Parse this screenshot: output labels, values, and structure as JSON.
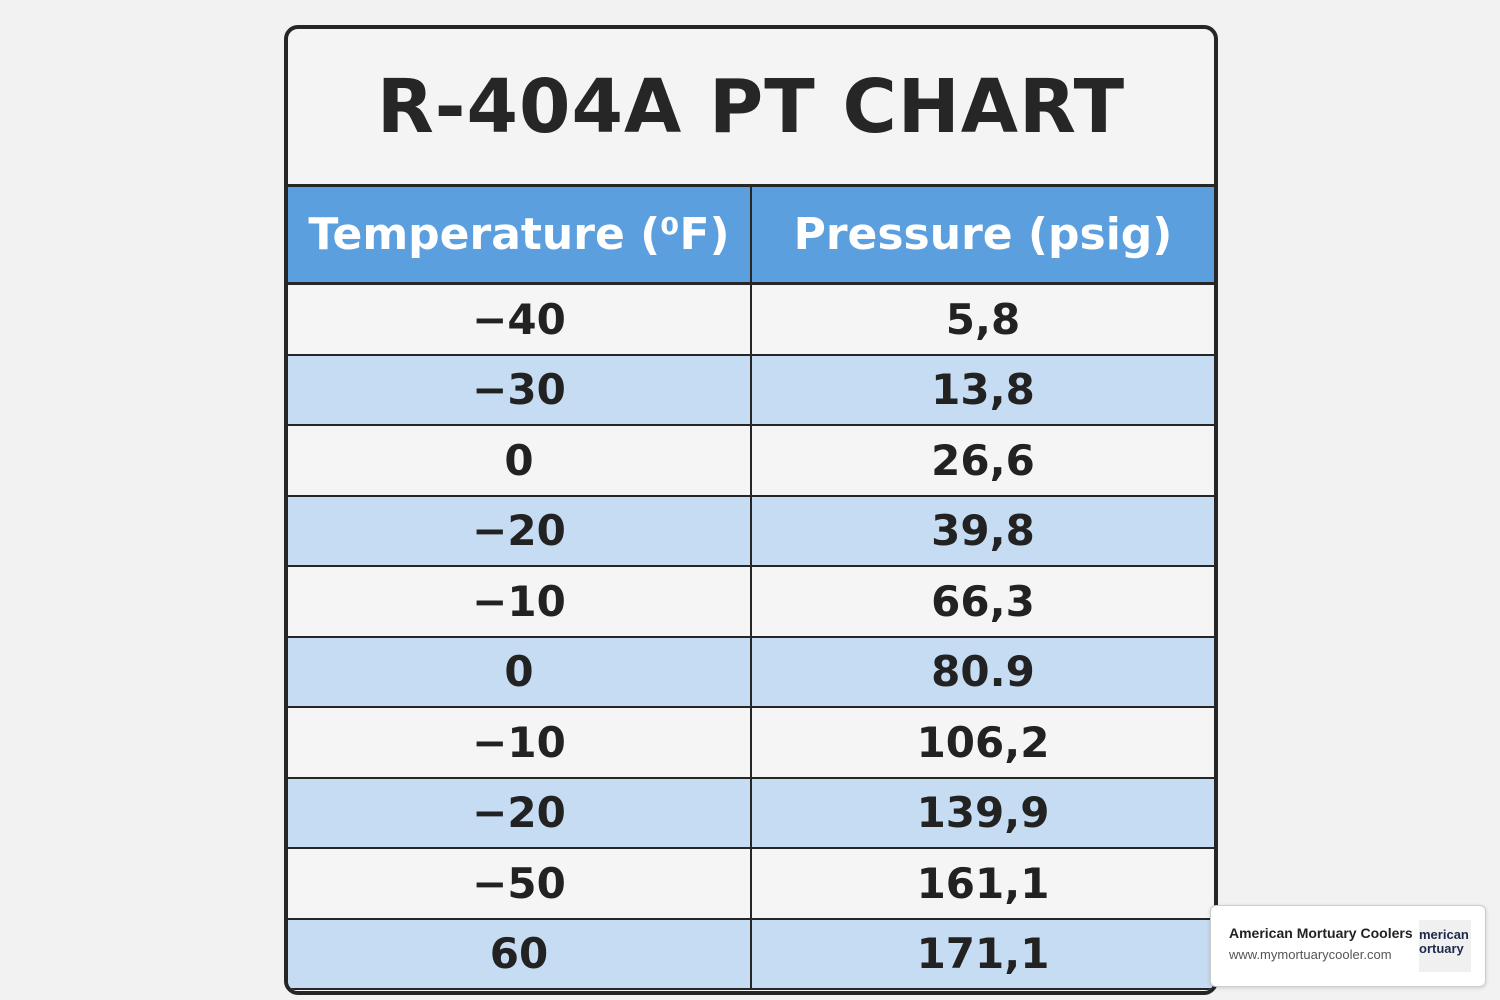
{
  "header": {
    "title": "R-404A PT CHART"
  },
  "table": {
    "columns": [
      "Temperature (⁰F)",
      "Pressure (psig)"
    ],
    "rows": [
      [
        "−40",
        "5,8"
      ],
      [
        "−30",
        "13,8"
      ],
      [
        "0",
        "26,6"
      ],
      [
        "−20",
        "39,8"
      ],
      [
        "−10",
        "66,3"
      ],
      [
        "0",
        "80.9"
      ],
      [
        "−10",
        "106,2"
      ],
      [
        "−20",
        "139,9"
      ],
      [
        "−50",
        "161,1"
      ],
      [
        "60",
        "171,1"
      ]
    ]
  },
  "badge": {
    "name": "American Mortuary Coolers",
    "url": "www.mymortuarycooler.com",
    "logo": [
      "merican",
      "ortuary"
    ]
  }
}
